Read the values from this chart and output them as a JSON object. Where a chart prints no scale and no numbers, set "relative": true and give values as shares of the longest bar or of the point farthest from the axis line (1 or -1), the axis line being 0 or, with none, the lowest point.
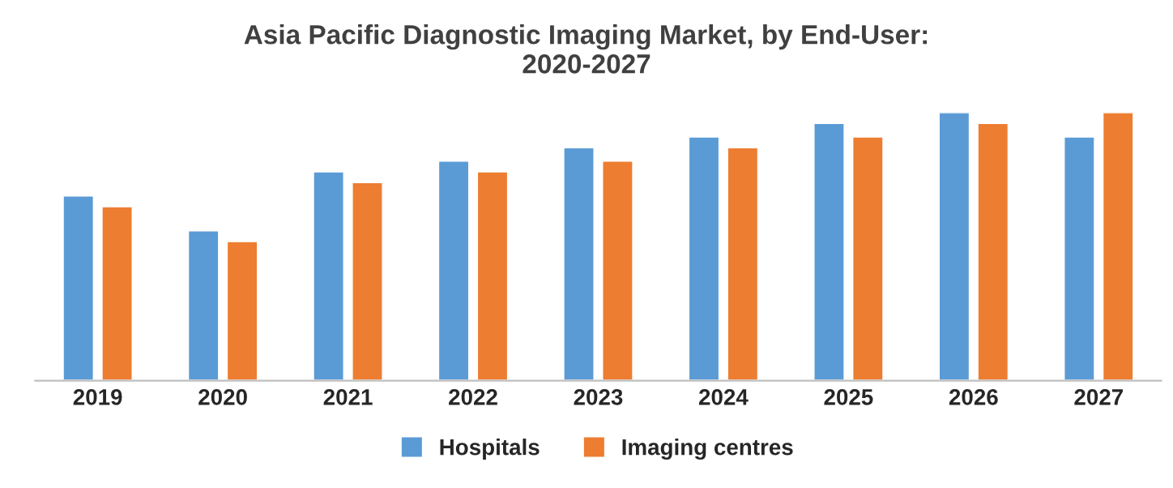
{
  "chart_data": {
    "type": "bar",
    "title": "Asia Pacific Diagnostic Imaging Market, by End-User:\n2020-2027",
    "categories": [
      "2019",
      "2020",
      "2021",
      "2022",
      "2023",
      "2024",
      "2025",
      "2026",
      "2027"
    ],
    "relative": true,
    "legend": "bottom",
    "grid": false,
    "series": [
      {
        "name": "Hospitals",
        "color": "#5b9bd5",
        "values": [
          0.69,
          0.56,
          0.78,
          0.82,
          0.87,
          0.91,
          0.96,
          1,
          0.91
        ]
      },
      {
        "name": "Imaging centres",
        "color": "#ed7d31",
        "values": [
          0.65,
          0.52,
          0.74,
          0.78,
          0.82,
          0.87,
          0.91,
          0.96,
          1
        ]
      }
    ]
  }
}
